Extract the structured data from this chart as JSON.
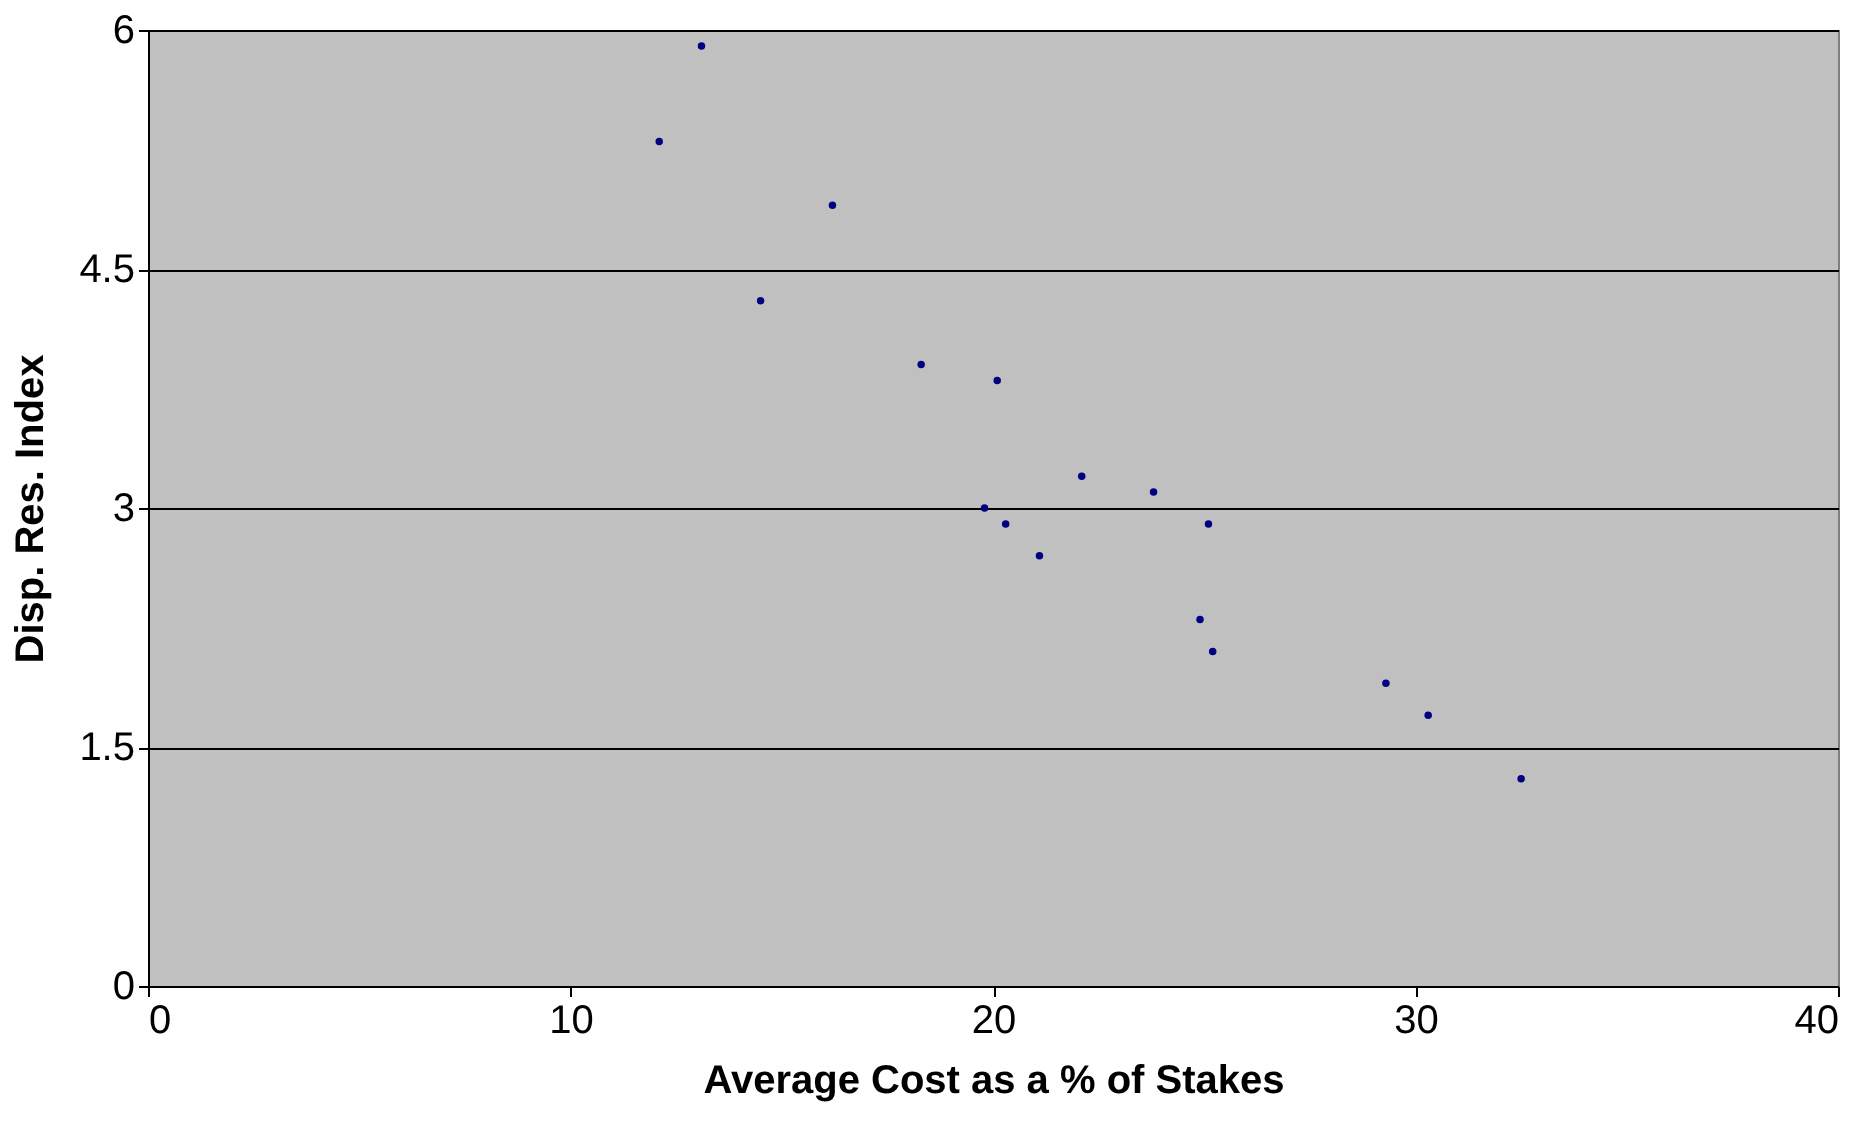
{
  "chart_data": {
    "type": "scatter",
    "xlabel": "Average Cost as a % of Stakes",
    "ylabel": "Disp. Res. Index",
    "x": [
      12.1,
      13.1,
      14.5,
      16.2,
      18.3,
      20.1,
      19.8,
      20.3,
      21.1,
      22.1,
      23.8,
      25.1,
      24.9,
      25.2,
      29.3,
      30.3,
      32.5
    ],
    "series": [
      {
        "color": "#000080",
        "values": [
          5.3,
          5.9,
          4.3,
          4.9,
          3.9,
          3.8,
          3.0,
          2.9,
          2.7,
          3.2,
          3.1,
          2.9,
          2.3,
          2.1,
          1.9,
          1.7,
          1.3
        ]
      }
    ],
    "xlim": [
      0,
      40
    ],
    "xticks": [
      0,
      10,
      20,
      30,
      40
    ],
    "ylim": [
      0,
      6
    ],
    "yticks": [
      0,
      1.5,
      3,
      4.5,
      6
    ],
    "grid": "y",
    "marker": "circle",
    "legend": false
  }
}
